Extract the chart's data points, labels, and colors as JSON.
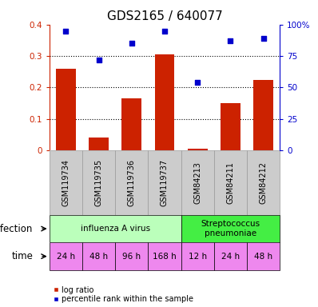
{
  "title": "GDS2165 / 640077",
  "samples": [
    "GSM119734",
    "GSM119735",
    "GSM119736",
    "GSM119737",
    "GSM84213",
    "GSM84211",
    "GSM84212"
  ],
  "log_ratio": [
    0.26,
    0.04,
    0.165,
    0.305,
    0.005,
    0.15,
    0.225
  ],
  "percentile_rank_pct": [
    95,
    72,
    85,
    95,
    54,
    87,
    89
  ],
  "bar_color": "#cc2200",
  "dot_color": "#0000cc",
  "ylim_left": [
    0,
    0.4
  ],
  "ylim_right": [
    0,
    100
  ],
  "yticks_left": [
    0,
    0.1,
    0.2,
    0.3,
    0.4
  ],
  "ytick_labels_left": [
    "0",
    "0.1",
    "0.2",
    "0.3",
    "0.4"
  ],
  "yticks_right": [
    0,
    25,
    50,
    75,
    100
  ],
  "ytick_labels_right": [
    "0",
    "25",
    "50",
    "75",
    "100%"
  ],
  "infection_groups": [
    {
      "label": "influenza A virus",
      "start": 0,
      "end": 4,
      "color": "#bbffbb"
    },
    {
      "label": "Streptococcus\npneumoniae",
      "start": 4,
      "end": 7,
      "color": "#44ee44"
    }
  ],
  "time_labels": [
    "24 h",
    "48 h",
    "96 h",
    "168 h",
    "12 h",
    "24 h",
    "48 h"
  ],
  "time_color": "#ee88ee",
  "sample_bg_color": "#cccccc",
  "sample_border_color": "#999999",
  "infection_label": "infection",
  "time_label": "time",
  "legend_log_ratio": "log ratio",
  "legend_percentile": "percentile rank within the sample",
  "left_axis_color": "#cc2200",
  "right_axis_color": "#0000cc",
  "title_fontsize": 11,
  "tick_fontsize": 7.5,
  "label_fontsize": 8.5,
  "cell_fontsize": 7,
  "time_fontsize": 7.5,
  "legend_fontsize": 7
}
